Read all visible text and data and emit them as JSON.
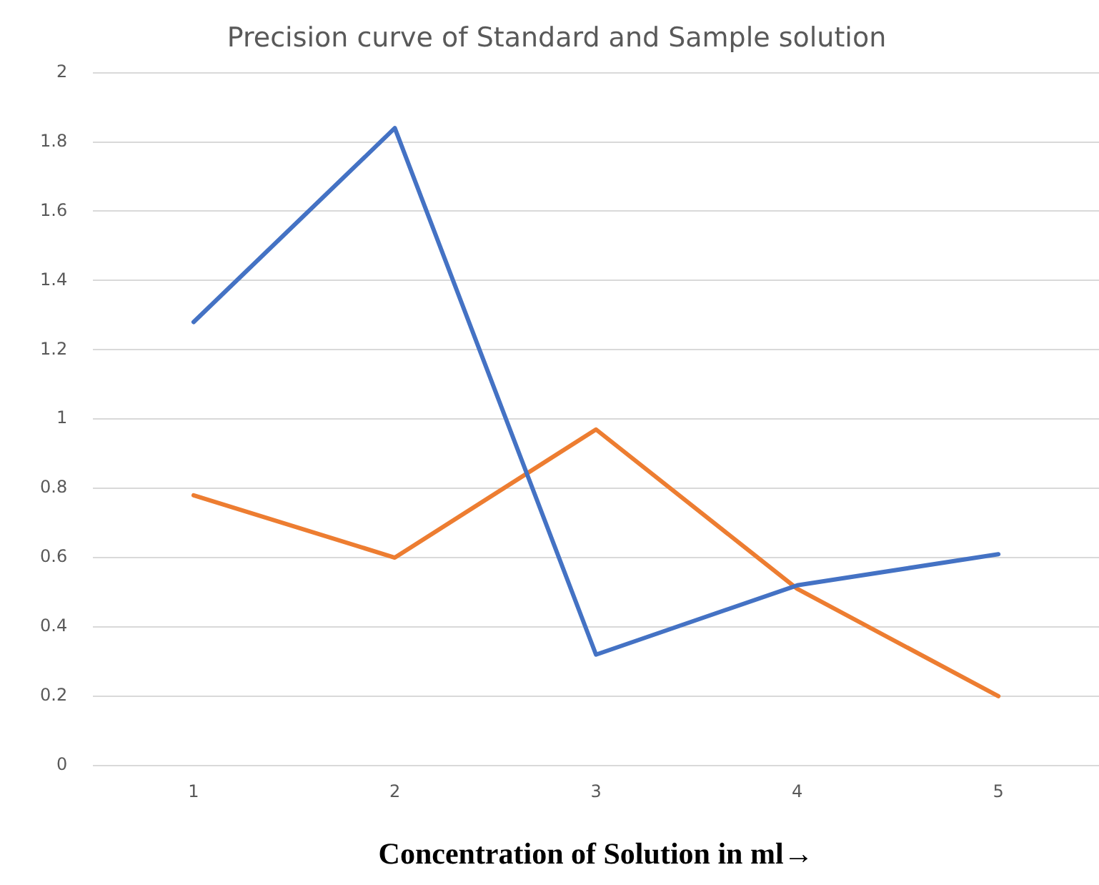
{
  "chart_data": {
    "type": "line",
    "title": "Precision curve of Standard and Sample solution",
    "xlabel": "Concentration of Solution in ml→",
    "categories": [
      "1",
      "2",
      "3",
      "4",
      "5"
    ],
    "series": [
      {
        "color": "#4472c4",
        "values": [
          1.28,
          1.84,
          0.32,
          0.52,
          0.61
        ]
      },
      {
        "color": "#ed7d31",
        "values": [
          0.78,
          0.6,
          0.97,
          0.51,
          0.2
        ]
      }
    ],
    "ylim": [
      0,
      2
    ],
    "yticks": [
      0,
      0.2,
      0.4,
      0.6,
      0.8,
      1,
      1.2,
      1.4,
      1.6,
      1.8,
      2
    ],
    "grid": "y",
    "legend": false,
    "marker": "none",
    "line_style": "solid"
  }
}
